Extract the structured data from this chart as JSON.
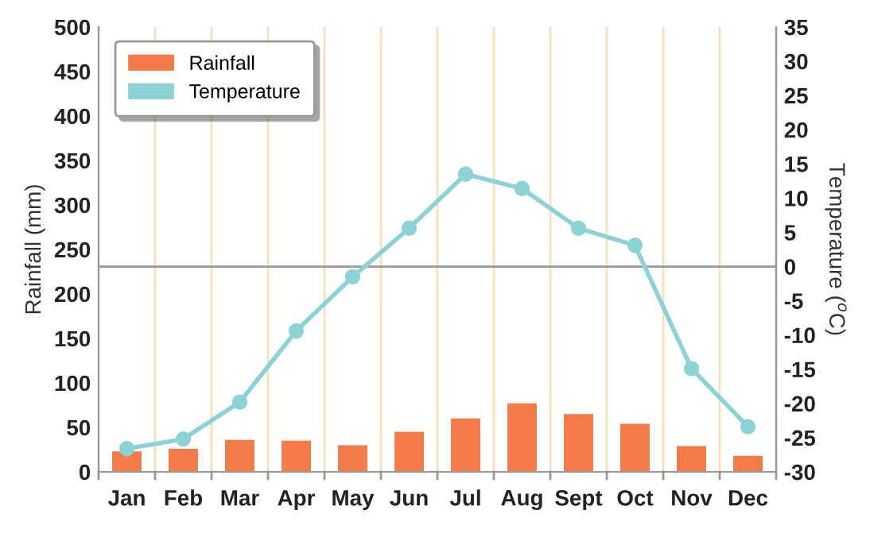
{
  "chart_data": {
    "type": "bar",
    "categories": [
      "Jan",
      "Feb",
      "Mar",
      "Apr",
      "May",
      "Jun",
      "Jul",
      "Aug",
      "Sept",
      "Oct",
      "Nov",
      "Dec"
    ],
    "series": [
      {
        "name": "Rainfall",
        "color": "#f47a4a",
        "values": [
          23,
          26,
          36,
          35,
          30,
          45,
          60,
          77,
          65,
          54,
          29,
          18
        ]
      },
      {
        "name": "Temperature",
        "type": "line",
        "axis": "y2",
        "color": "#8dd3d6",
        "values": [
          -26.6,
          -25.2,
          -19.8,
          -9.4,
          -1.5,
          5.6,
          13.5,
          11.4,
          5.6,
          3.1,
          -14.9,
          -23.4
        ]
      }
    ],
    "ylabel": "Rainfall (mm)",
    "y2label": "Temperature ($^{o}$C)",
    "ylim": [
      0,
      500
    ],
    "yticks": [
      0,
      50,
      100,
      150,
      200,
      250,
      300,
      350,
      400,
      450,
      500
    ],
    "y2lim": [
      -30,
      35
    ],
    "y2ticks": [
      -30,
      -25,
      -20,
      -15,
      -10,
      -5,
      0,
      5,
      10,
      15,
      20,
      25,
      30,
      35
    ],
    "ref_lines": [
      {
        "axis": "y2",
        "value": 0,
        "color": "#999999"
      }
    ],
    "grid": "x",
    "legend": "top left",
    "marker": "circle",
    "line_style": "solid"
  }
}
